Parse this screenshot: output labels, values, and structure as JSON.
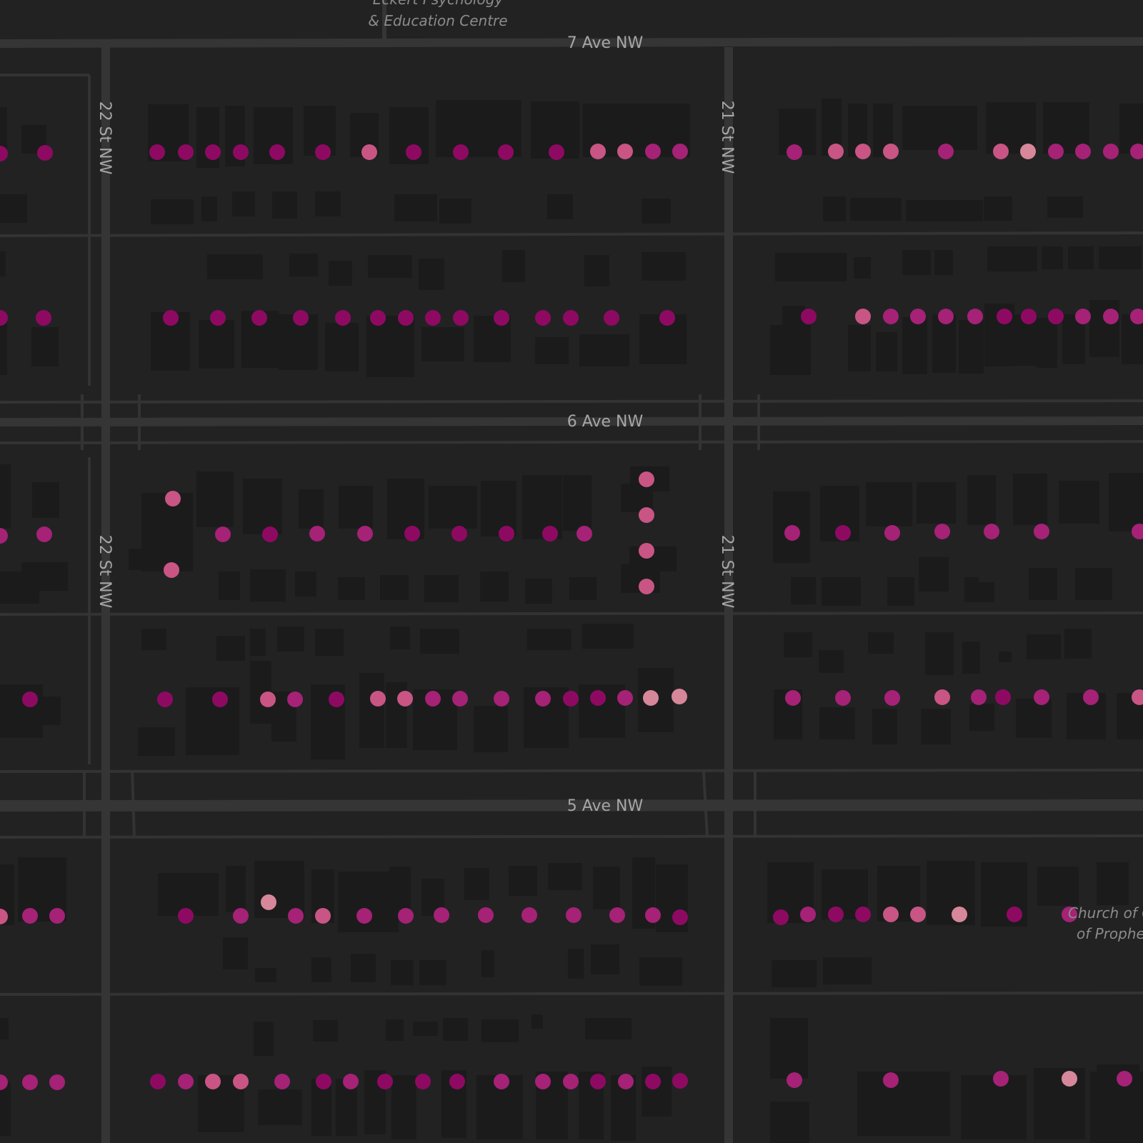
{
  "map": {
    "theme": "dark",
    "colors": {
      "background": "#222223",
      "road": "#333334",
      "road_outline": "#353536",
      "building": "#1b1b1c",
      "point_dark": "#8e0a62",
      "point_mid": "#a52276",
      "point_light": "#c95585",
      "point_pale": "#d7879a"
    },
    "streets": {
      "ave_7": "7 Ave NW",
      "ave_6": "6 Ave NW",
      "ave_5": "5 Ave NW",
      "st_22": "22 St NW",
      "st_21": "21 St NW"
    },
    "poi": {
      "eckert_line1": "Eckert Psychology",
      "eckert_line2": "& Education Centre",
      "church_line1": "Church of C",
      "church_line2": "of Prophe"
    }
  }
}
